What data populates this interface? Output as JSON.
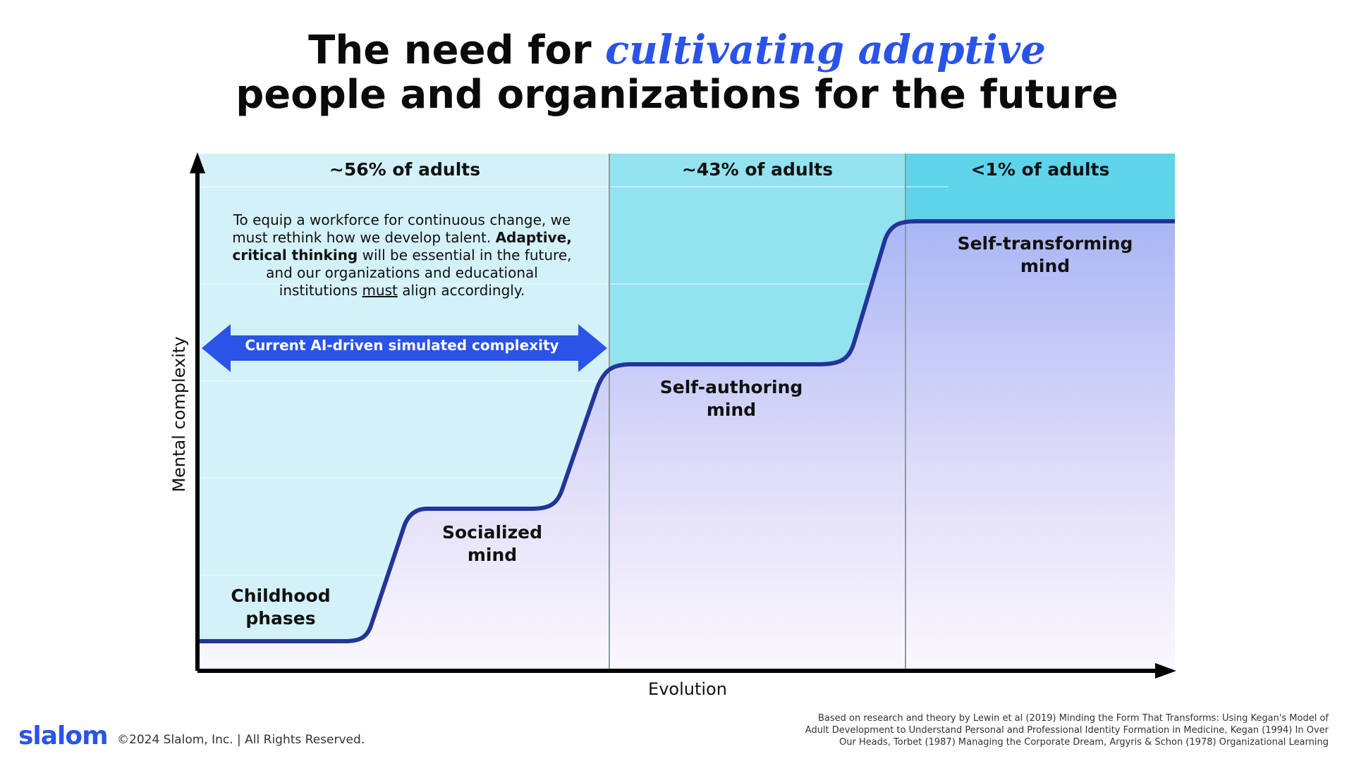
{
  "title": {
    "line1_prefix": "The need for ",
    "line1_accent": "cultivating adaptive",
    "line2": "people and organizations for the future"
  },
  "regions": [
    {
      "label": "~56% of adults"
    },
    {
      "label": "~43% of adults"
    },
    {
      "label": "<1% of adults"
    }
  ],
  "intro": {
    "part1": "To equip a workforce for continuous change, we must rethink how we develop talent. ",
    "bold1": "Adaptive, critical thinking",
    "part2": " will be essential in the future, and our organizations and educational institutions ",
    "underline": "must",
    "part3": " align accordingly."
  },
  "arrow_label": "Current AI-driven simulated complexity",
  "stages": [
    {
      "line1": "Childhood",
      "line2": "phases"
    },
    {
      "line1": "Socialized",
      "line2": "mind"
    },
    {
      "line1": "Self-authoring",
      "line2": "mind"
    },
    {
      "line1": "Self-transforming",
      "line2": "mind"
    }
  ],
  "axes": {
    "x_label": "Evolution",
    "y_label": "Mental complexity"
  },
  "footer": {
    "logo": "slalom",
    "copyright": "©2024 Slalom, Inc. | All Rights Reserved.",
    "footnote_line1": "Based on research and theory by Lewin et al (2019) Minding the Form That Transforms: Using Kegan's Model of",
    "footnote_line2": "Adult Development to Understand Personal and Professional Identity Formation in Medicine, Kegan (1994) In Over",
    "footnote_line3": "Our Heads, Torbet (1987) Managing the Corporate Dream,  Argyris & Schon (1978) Organizational Learning"
  },
  "colors": {
    "accent": "#2a53e8",
    "region1": "#d3f1f9",
    "region2": "#93e2ef",
    "region3": "#5dd4ea",
    "curve": "#23349a",
    "under_curve_top": "#a9b6f5",
    "arrow": "#2a53e8"
  }
}
